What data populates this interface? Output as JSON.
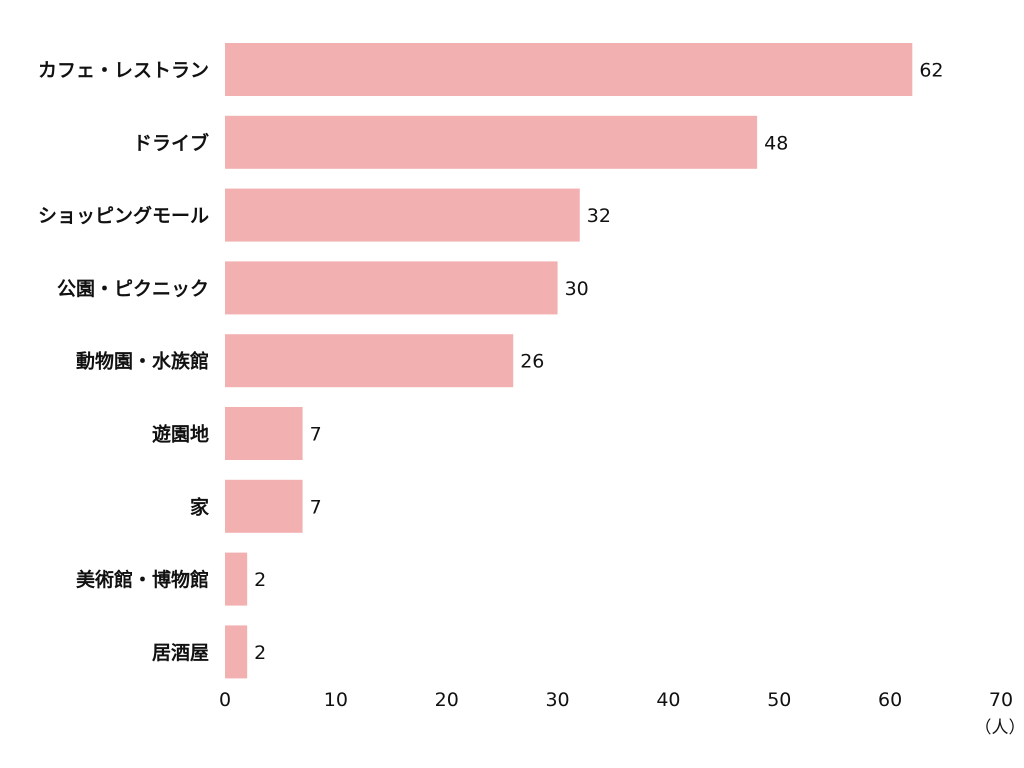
{
  "chart_data": {
    "type": "bar",
    "orientation": "horizontal",
    "categories": [
      "カフェ・レストラン",
      "ドライブ",
      "ショッピングモール",
      "公園・ピクニック",
      "動物園・水族館",
      "遊園地",
      "家",
      "美術館・博物館",
      "居酒屋"
    ],
    "values": [
      62,
      48,
      32,
      30,
      26,
      7,
      7,
      2,
      2
    ],
    "xlim": [
      0,
      70
    ],
    "x_ticks": [
      0,
      10,
      20,
      30,
      40,
      50,
      60,
      70
    ],
    "xunit": "（人）",
    "grid": false,
    "bar_color": "#f2b0b1"
  }
}
